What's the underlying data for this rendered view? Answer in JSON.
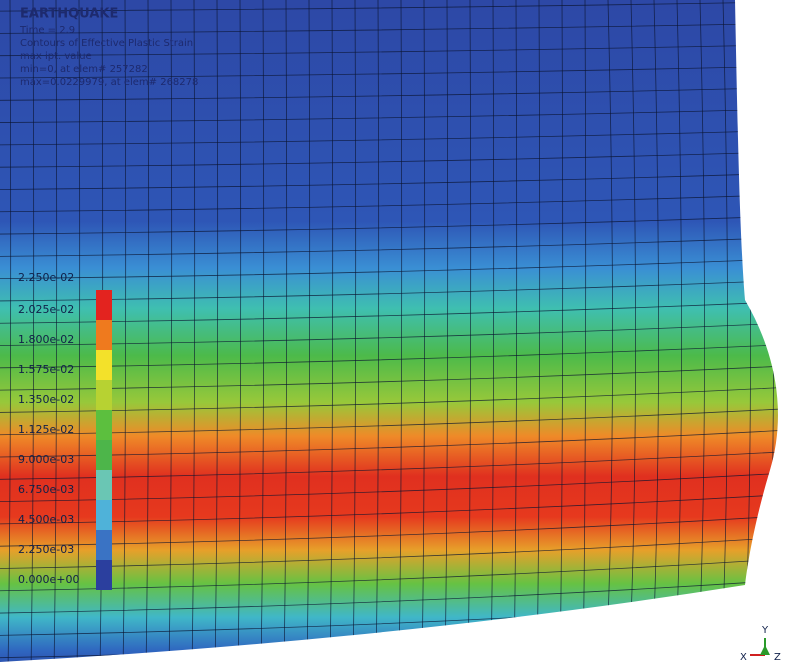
{
  "header": {
    "title": "EARTHQUAKE",
    "lines": [
      "Time =      2.9",
      "Contours of Effective Plastic Strain",
      "max ipt. value",
      "min=0, at elem# 257282",
      "max=0.0229979, at elem# 268278"
    ]
  },
  "legend": {
    "labels": [
      "2.250e-02",
      "2.025e-02",
      "1.800e-02",
      "1.575e-02",
      "1.350e-02",
      "1.125e-02",
      "9.000e-03",
      "6.750e-03",
      "4.500e-03",
      "2.250e-03",
      "0.000e+00"
    ],
    "colors": [
      "#e3231f",
      "#ef7a1e",
      "#f3e12a",
      "#b7d232",
      "#5cbf3e",
      "#4db54a",
      "#6ac6b4",
      "#4fb2d9",
      "#3a73c4",
      "#2b3f9e"
    ]
  },
  "triad": {
    "y": "Y",
    "x": "X",
    "z": "Z"
  }
}
